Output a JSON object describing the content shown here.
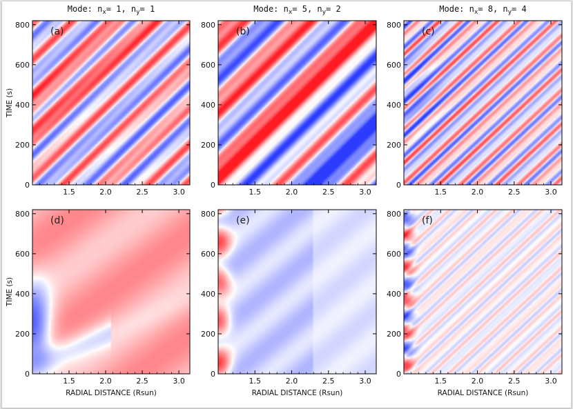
{
  "chart_data": {
    "type": "heatmap",
    "colormap": {
      "negative": "#2b3cff",
      "zero": "#ffffff",
      "positive": "#ff1a22"
    },
    "xlabel": "RADIAL DISTANCE (Rsun)",
    "ylabel": "TIME (s)",
    "xlim": [
      1.0,
      3.15
    ],
    "ylim": [
      0,
      820
    ],
    "xticks": [
      1.5,
      2.0,
      2.5,
      3.0
    ],
    "xtick_labels": [
      "1.5",
      "2.0",
      "2.5",
      "3.0"
    ],
    "yticks": [
      0,
      200,
      400,
      600,
      800
    ],
    "ytick_labels": [
      "0",
      "200",
      "400",
      "600",
      "800"
    ],
    "column_titles": [
      {
        "prefix": "Mode: n",
        "sub1": "x",
        "mid": "= 1, n",
        "sub2": "y",
        "suffix": "= 1"
      },
      {
        "prefix": "Mode: n",
        "sub1": "x",
        "mid": "= 5, n",
        "sub2": "y",
        "suffix": "= 2"
      },
      {
        "prefix": "Mode: n",
        "sub1": "x",
        "mid": "= 8, n",
        "sub2": "y",
        "suffix": "= 4"
      }
    ],
    "panels": [
      {
        "tag": "(a)",
        "mode": [
          1,
          1
        ],
        "row": 0,
        "col": 0
      },
      {
        "tag": "(b)",
        "mode": [
          5,
          2
        ],
        "row": 0,
        "col": 1
      },
      {
        "tag": "(c)",
        "mode": [
          8,
          4
        ],
        "row": 0,
        "col": 2
      },
      {
        "tag": "(d)",
        "mode": [
          1,
          1
        ],
        "row": 1,
        "col": 0
      },
      {
        "tag": "(e)",
        "mode": [
          5,
          2
        ],
        "row": 1,
        "col": 1
      },
      {
        "tag": "(f)",
        "mode": [
          8,
          4
        ],
        "row": 1,
        "col": 2
      }
    ]
  }
}
